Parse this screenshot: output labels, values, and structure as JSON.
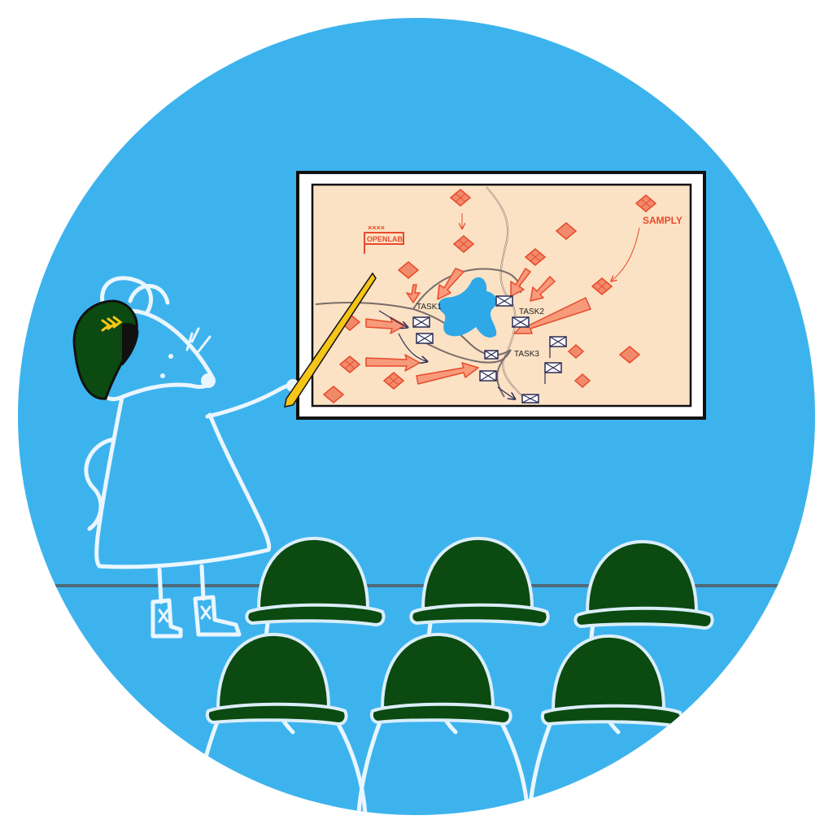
{
  "colors": {
    "background_circle": "#3db3ee",
    "map_paper": "#fbe2c4",
    "helmet_green": "#0b4a10",
    "enemy_red": "#e84a2c",
    "lake_blue": "#2fa8e8",
    "rank_gold": "#f5c518",
    "chalk_white": "#eaf6ff"
  },
  "map": {
    "flag_label": "OPENLAB",
    "flag_marks": "××××",
    "enemy_label": "SAMPLY",
    "task_labels": [
      "TASK1",
      "TASK2",
      "TASK3"
    ]
  },
  "icons": [
    "mouse-officer-figure",
    "beret-icon",
    "rank-chevrons-icon",
    "pointer-stick",
    "map-board",
    "soldier-helmet-icon"
  ]
}
